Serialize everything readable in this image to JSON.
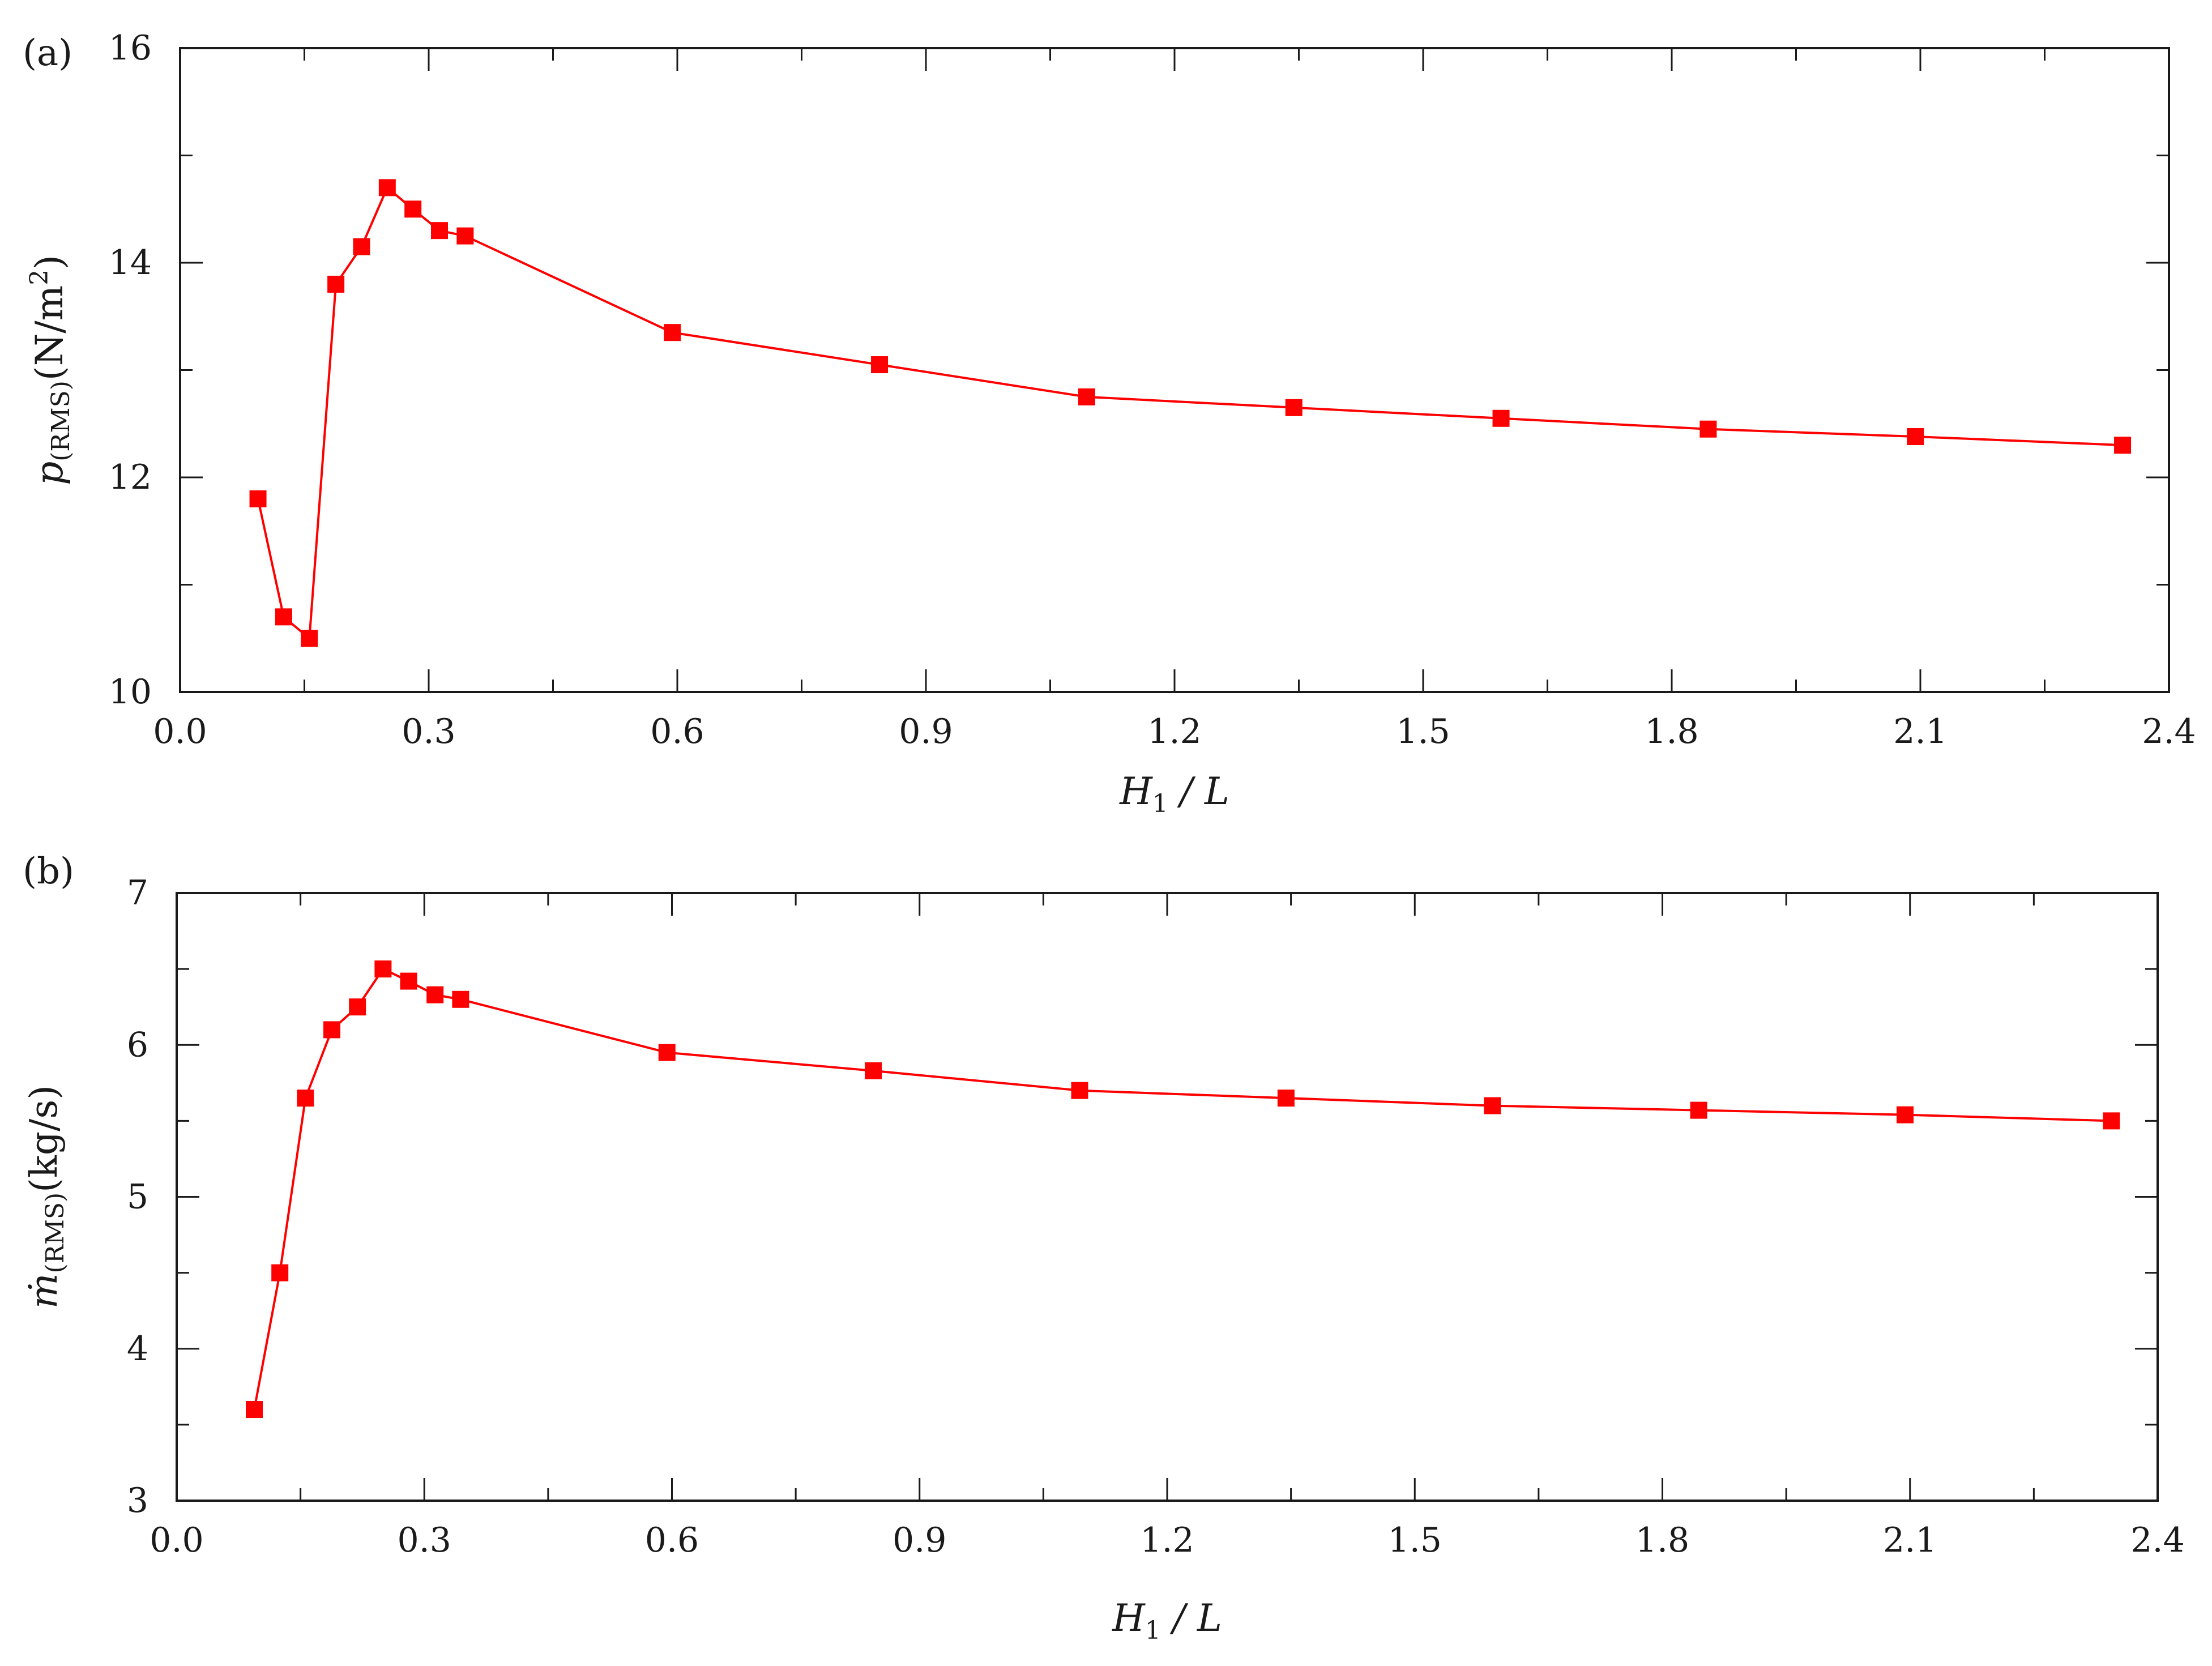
{
  "chart_data": [
    {
      "type": "line",
      "panel_label": "(a)",
      "xlabel_main": "H",
      "xlabel_sub": "1",
      "xlabel_rest": " / L",
      "ylabel_main": "p",
      "ylabel_sub": "(RMS)",
      "ylabel_unit": "(N/m",
      "ylabel_unit_sup": "2",
      "ylabel_unit_close": ")",
      "xlim": [
        0.0,
        2.4
      ],
      "ylim": [
        10,
        16
      ],
      "xticks": [
        0.0,
        0.3,
        0.6,
        0.9,
        1.2,
        1.5,
        1.8,
        2.1,
        2.4
      ],
      "xtick_labels": [
        "0.0",
        "0.3",
        "0.6",
        "0.9",
        "1.2",
        "1.5",
        "1.8",
        "2.1",
        "2.4"
      ],
      "yticks": [
        10,
        12,
        14,
        16
      ],
      "ytick_labels": [
        "10",
        "12",
        "14",
        "16"
      ],
      "grid": false,
      "color": "#ff0000",
      "x": [
        0.094,
        0.125,
        0.156,
        0.188,
        0.219,
        0.25,
        0.281,
        0.313,
        0.344,
        0.594,
        0.844,
        1.094,
        1.344,
        1.594,
        1.844,
        2.094,
        2.344
      ],
      "y": [
        11.8,
        10.7,
        10.5,
        13.8,
        14.15,
        14.7,
        14.5,
        14.3,
        14.25,
        13.35,
        13.05,
        12.75,
        12.65,
        12.55,
        12.45,
        12.38,
        12.3
      ]
    },
    {
      "type": "line",
      "panel_label": "(b)",
      "xlabel_main": "H",
      "xlabel_sub": "1",
      "xlabel_rest": " / L",
      "ylabel_main": "ṁ",
      "ylabel_sub": "(RMS)",
      "ylabel_unit": "(kg/s)",
      "xlim": [
        0.0,
        2.4
      ],
      "ylim": [
        3,
        7
      ],
      "xticks": [
        0.0,
        0.3,
        0.6,
        0.9,
        1.2,
        1.5,
        1.8,
        2.1,
        2.4
      ],
      "xtick_labels": [
        "0.0",
        "0.3",
        "0.6",
        "0.9",
        "1.2",
        "1.5",
        "1.8",
        "2.1",
        "2.4"
      ],
      "yticks": [
        3,
        4,
        5,
        6,
        7
      ],
      "ytick_labels": [
        "3",
        "4",
        "5",
        "6",
        "7"
      ],
      "grid": false,
      "color": "#ff0000",
      "x": [
        0.094,
        0.125,
        0.156,
        0.188,
        0.219,
        0.25,
        0.281,
        0.313,
        0.344,
        0.594,
        0.844,
        1.094,
        1.344,
        1.594,
        1.844,
        2.094,
        2.344
      ],
      "y": [
        3.6,
        4.5,
        5.65,
        6.1,
        6.25,
        6.5,
        6.42,
        6.33,
        6.3,
        5.95,
        5.83,
        5.7,
        5.65,
        5.6,
        5.57,
        5.54,
        5.5
      ]
    }
  ]
}
